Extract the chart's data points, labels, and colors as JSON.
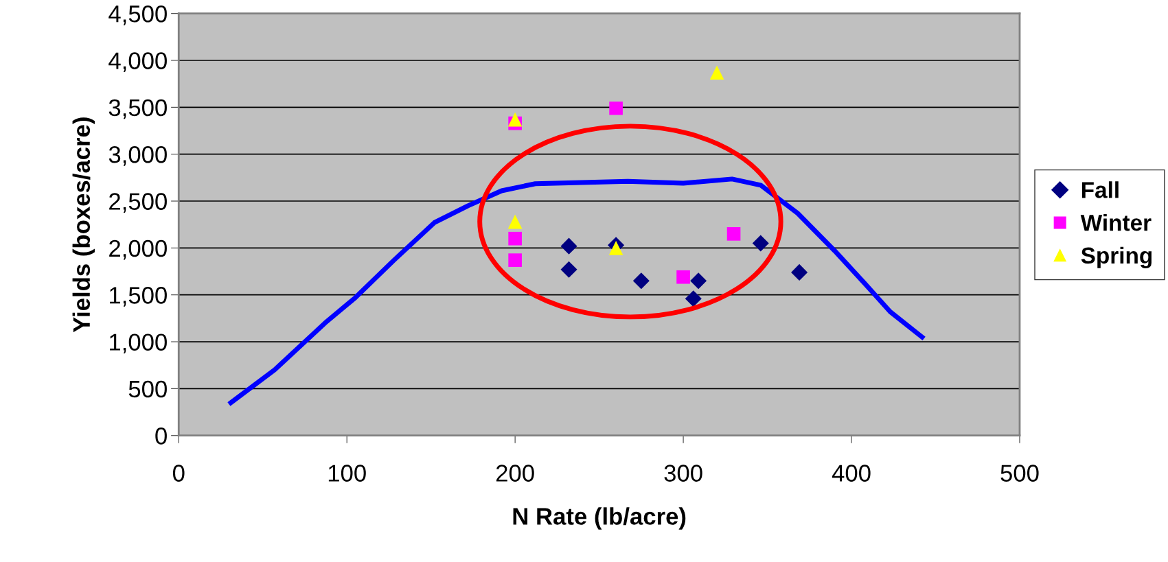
{
  "chart_data": {
    "type": "scatter",
    "xlabel": "N Rate (lb/acre)",
    "ylabel": "Yields (boxes/acre)",
    "xlim": [
      0,
      500
    ],
    "xticks": [
      0,
      100,
      200,
      300,
      400,
      500
    ],
    "ylim": [
      0,
      4500
    ],
    "yticks": [
      {
        "value": 0,
        "label": "0"
      },
      {
        "value": 500,
        "label": "500"
      },
      {
        "value": 1000,
        "label": "1,000"
      },
      {
        "value": 1500,
        "label": "1,500"
      },
      {
        "value": 2000,
        "label": "2,000"
      },
      {
        "value": 2500,
        "label": "2,500"
      },
      {
        "value": 3000,
        "label": "3,000"
      },
      {
        "value": 3500,
        "label": "3,500"
      },
      {
        "value": 4000,
        "label": "4,000"
      },
      {
        "value": 4500,
        "label": "4,500"
      }
    ],
    "grid": "y",
    "legend": "right",
    "series": [
      {
        "name": "Fall",
        "color": "#000080",
        "marker": "diamond",
        "x": [
          232,
          232,
          260,
          275,
          306,
          309,
          346,
          369
        ],
        "values": [
          2020,
          1770,
          2030,
          1650,
          1460,
          1650,
          2050,
          1740
        ]
      },
      {
        "name": "Winter",
        "color": "#ff00ff",
        "marker": "square",
        "x": [
          200,
          200,
          200,
          260,
          300,
          330
        ],
        "values": [
          3330,
          2100,
          1870,
          3490,
          1690,
          2150
        ]
      },
      {
        "name": "Spring",
        "color": "#ffff00",
        "marker": "triangle",
        "x": [
          200,
          200,
          260,
          320
        ],
        "values": [
          3370,
          2280,
          2000,
          3870
        ]
      },
      {
        "type": "line",
        "color": "#0000ff",
        "marker": "none",
        "x": [
          31,
          57,
          87,
          105,
          128,
          152,
          172,
          192,
          212,
          267,
          300,
          329,
          346,
          368,
          390,
          408,
          423,
          442
        ],
        "values": [
          350,
          700,
          1200,
          1470,
          1870,
          2270,
          2450,
          2610,
          2685,
          2710,
          2690,
          2735,
          2670,
          2370,
          1970,
          1620,
          1320,
          1050
        ]
      }
    ]
  }
}
